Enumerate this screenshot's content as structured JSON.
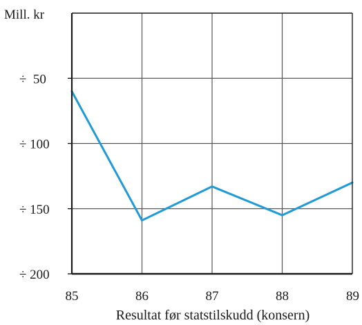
{
  "chart_data": {
    "type": "line",
    "title": "",
    "xlabel": "Resultat før statstilskudd (konsern)",
    "ylabel": "Mill. kr",
    "x": [
      85,
      86,
      87,
      88,
      89
    ],
    "xlim": [
      85,
      89
    ],
    "xticks": [
      "85",
      "86",
      "87",
      "88",
      "89"
    ],
    "ylim": [
      0,
      -200
    ],
    "yticks": [
      {
        "value": -50,
        "label": "÷  50"
      },
      {
        "value": -100,
        "label": "÷ 100"
      },
      {
        "value": -150,
        "label": "÷ 150"
      },
      {
        "value": -200,
        "label": "÷ 200"
      }
    ],
    "grid": true,
    "series": [
      {
        "values": [
          -60,
          -159,
          -133,
          -155,
          -130
        ],
        "color": "#1f9ad6"
      }
    ],
    "colors": {
      "line": "#1f9ad6",
      "axes": "#1a1a1a",
      "grid": "#555555"
    }
  }
}
